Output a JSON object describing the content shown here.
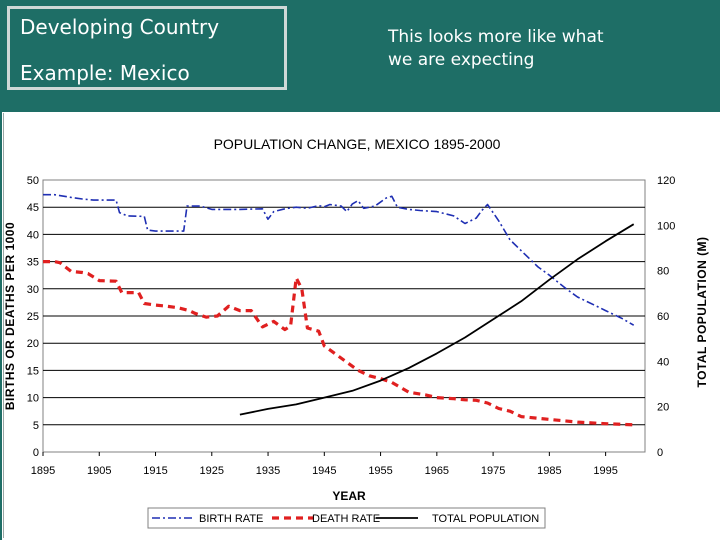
{
  "slide": {
    "title_line1": "Developing Country",
    "title_line2": "Example: Mexico",
    "note_line1": "This looks more like what",
    "note_line2": "we are expecting",
    "banner_color": "#1e6e66"
  },
  "chart_data": {
    "type": "line",
    "title": "POPULATION CHANGE, MEXICO 1895-2000",
    "xlabel": "YEAR",
    "ylabel": "BIRTHS OR DEATHS PER 1000",
    "y2label": "TOTAL POPULATION (M)",
    "xlim": [
      1895,
      2002
    ],
    "ylim": [
      0,
      50
    ],
    "y2lim": [
      0,
      120
    ],
    "x_ticks": [
      "1895",
      "1905",
      "1915",
      "1925",
      "1935",
      "1945",
      "1955",
      "1965",
      "1975",
      "1985",
      "1995"
    ],
    "y_ticks": [
      "0",
      "5",
      "10",
      "15",
      "20",
      "25",
      "30",
      "35",
      "40",
      "45",
      "50"
    ],
    "y2_ticks": [
      "0",
      "20",
      "40",
      "60",
      "80",
      "100",
      "120"
    ],
    "grid": true,
    "legend": "bottom",
    "series": [
      {
        "name": "BIRTH RATE",
        "axis": "left",
        "style": "dash-dot",
        "color": "#1f2fb3",
        "x": [
          1895,
          1897,
          1900,
          1902,
          1904,
          1908,
          1908.6,
          1910,
          1913,
          1913.6,
          1915,
          1920,
          1920.6,
          1923,
          1925,
          1930,
          1934,
          1935,
          1936,
          1938,
          1940,
          1942,
          1944,
          1945,
          1946,
          1948,
          1949,
          1950,
          1951,
          1952,
          1954,
          1956,
          1957,
          1958,
          1960,
          1962,
          1965,
          1968,
          1970,
          1972,
          1973,
          1974,
          1976,
          1978,
          1980,
          1982,
          1983,
          1985,
          1988,
          1990,
          1993,
          1995,
          1998,
          2000
        ],
        "y": [
          47.3,
          47.3,
          46.8,
          46.5,
          46.3,
          46.3,
          44.0,
          43.4,
          43.3,
          40.8,
          40.6,
          40.6,
          45.2,
          45.2,
          44.6,
          44.6,
          44.7,
          42.8,
          44.2,
          44.7,
          45.0,
          44.8,
          45.3,
          45.1,
          45.5,
          45.2,
          44.2,
          45.6,
          46.2,
          44.8,
          45.2,
          46.7,
          47.0,
          45.0,
          44.6,
          44.4,
          44.2,
          43.4,
          42.0,
          43.0,
          44.4,
          45.5,
          42.5,
          39.0,
          37.0,
          35.0,
          34.0,
          32.5,
          30.0,
          28.5,
          27.0,
          26.0,
          24.5,
          23.3
        ]
      },
      {
        "name": "DEATH RATE",
        "axis": "left",
        "style": "dash",
        "color": "#e02020",
        "x": [
          1895,
          1897,
          1898,
          1900,
          1902,
          1903,
          1905,
          1908,
          1909,
          1912,
          1913,
          1915,
          1917,
          1919,
          1921,
          1922,
          1924,
          1926,
          1928,
          1930,
          1932,
          1934,
          1936,
          1938,
          1939,
          1940,
          1941,
          1942,
          1944,
          1945,
          1947,
          1949,
          1951,
          1953,
          1955,
          1957,
          1960,
          1963,
          1965,
          1968,
          1970,
          1972,
          1974,
          1976,
          1978,
          1980,
          1985,
          1990,
          1995,
          2000
        ],
        "y": [
          35.0,
          35.0,
          34.8,
          33.2,
          33.0,
          32.8,
          31.5,
          31.4,
          29.3,
          29.3,
          27.3,
          27.0,
          26.8,
          26.5,
          26.0,
          25.5,
          24.8,
          25.0,
          26.8,
          26.0,
          26.0,
          23.0,
          24.0,
          22.5,
          23.2,
          32.0,
          30.0,
          22.8,
          22.2,
          19.5,
          18.0,
          16.5,
          15.0,
          14.0,
          13.5,
          12.8,
          11.0,
          10.5,
          10.0,
          9.8,
          9.6,
          9.5,
          9.0,
          8.0,
          7.5,
          6.5,
          6.0,
          5.5,
          5.2,
          5.0
        ]
      },
      {
        "name": "TOTAL POPULATION",
        "axis": "right",
        "style": "solid",
        "color": "#000000",
        "x": [
          1930,
          1935,
          1940,
          1945,
          1950,
          1955,
          1960,
          1965,
          1970,
          1975,
          1980,
          1985,
          1990,
          1995,
          2000
        ],
        "y": [
          16.5,
          19.0,
          21.0,
          24.0,
          27.0,
          31.5,
          37.0,
          43.5,
          50.5,
          58.5,
          66.5,
          76.0,
          85.0,
          93.0,
          100.5
        ]
      }
    ]
  }
}
